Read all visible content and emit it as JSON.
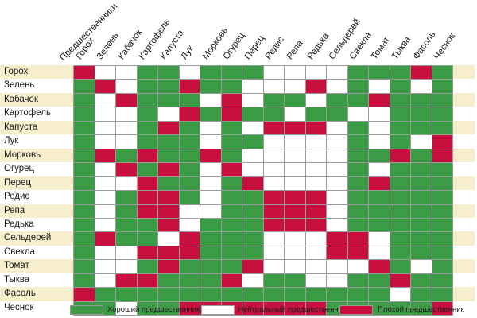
{
  "corner_label": "Предшественники",
  "columns": [
    "Горох",
    "Зелень",
    "Кабачок",
    "Картофель",
    "Капуста",
    "Лук",
    "Морковь",
    "Огурец",
    "Перец",
    "Редис",
    "Репа",
    "Редька",
    "Сельдерей",
    "Свекла",
    "Томат",
    "Тыква",
    "Фасоль",
    "Чеснок"
  ],
  "rows": [
    "Горох",
    "Зелень",
    "Кабачок",
    "Картофель",
    "Капуста",
    "Лук",
    "Морковь",
    "Огурец",
    "Перец",
    "Редис",
    "Репа",
    "Редька",
    "Сельдерей",
    "Свекла",
    "Томат",
    "Тыква",
    "Фасоль",
    "Чеснок"
  ],
  "colors": {
    "good": "#3b9c45",
    "neutral": "#ffffff",
    "bad": "#c8103e",
    "stripe": "#f7eecd",
    "grid": "#9a9a9a"
  },
  "matrix": [
    "bwwggwgggwwwwgggbg",
    "gbwggbggwwwbwgwgwg",
    "gwbgggwbwggwggbggg",
    "gwwgwbgbggwggwwggg",
    "gwwgbgwgwbbbwgwggg",
    "gwwgggwggwwwwgwgwb",
    "gbgbggbgwwwwwggbgb",
    "gwbgbgwbwwwwwgwggg",
    "gwwbggwgbwwwwgbggg",
    "gwgbbgwggbbbwggggg",
    "gwgbbwwggbbbwggggg",
    "gwggbwgggbbbwggggg",
    "gbggwbgggwwwbbwggg",
    "gwwbbbgggwwwbbwggg",
    "gwwgbgggbwwwwwbgwg",
    "gwbbgggbwggwwggbgg",
    "bggggggggggggggwgg",
    "ggwggbbbbbbbgggggb"
  ],
  "legend": {
    "good": "Хороший предшественник",
    "neutral": "Нейтральный предшественник",
    "bad": "Плохой предшественник"
  }
}
